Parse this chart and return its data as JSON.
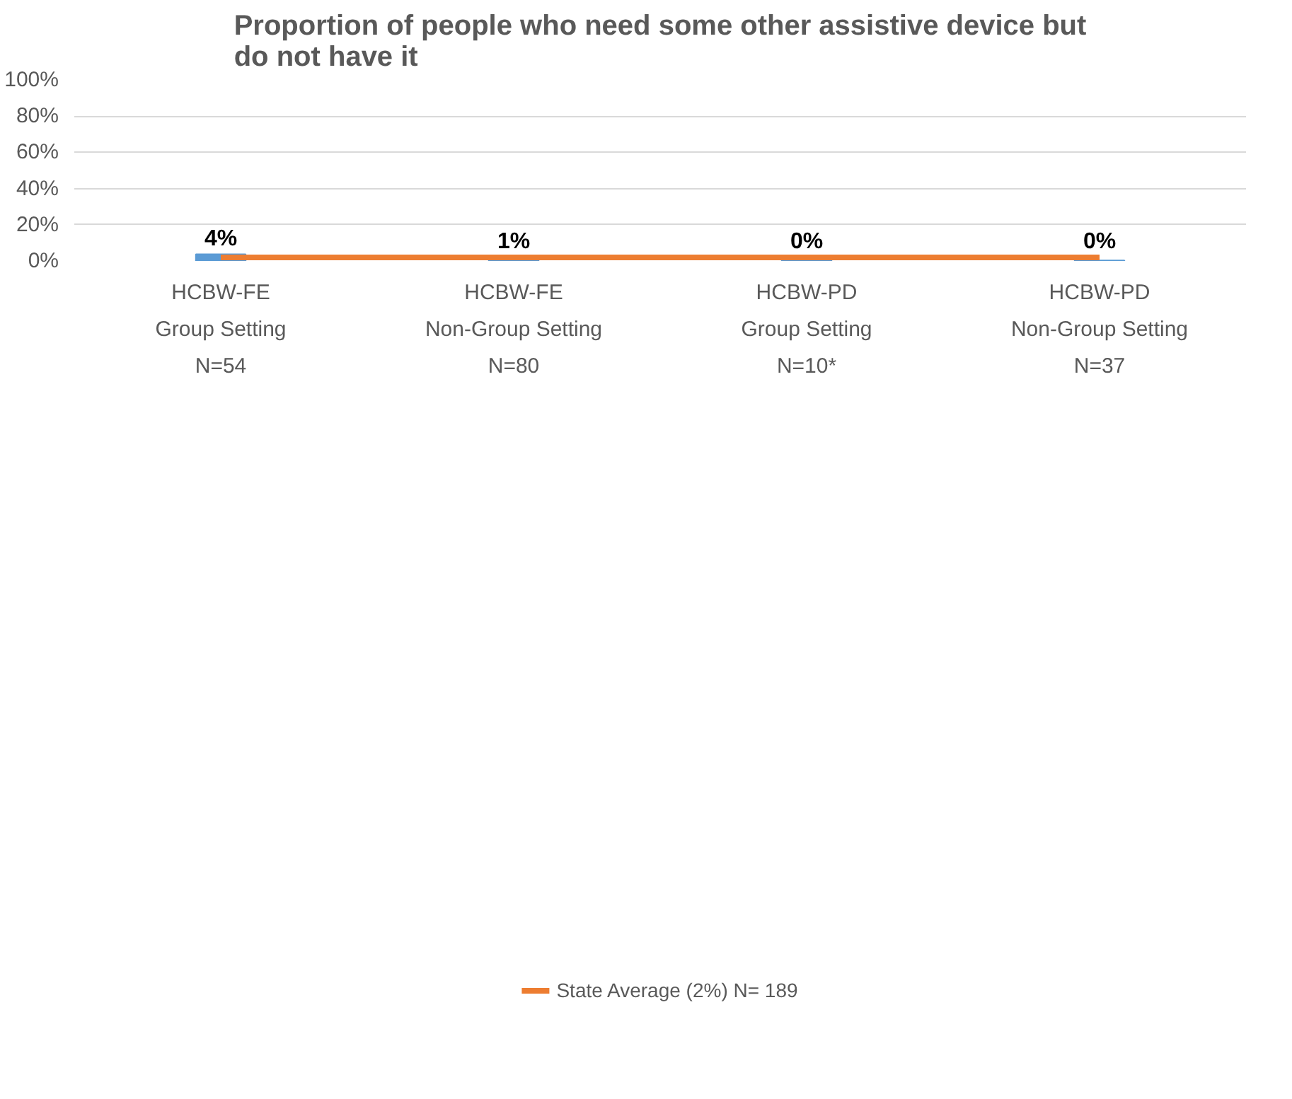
{
  "chart_data": {
    "type": "bar",
    "title": "Proportion of people who need some other assistive device but\ndo not have it",
    "categories": [
      "HCBW-FE\nGroup Setting\nN=54",
      "HCBW-FE\nNon-Group Setting\nN=80",
      "HCBW-PD\nGroup Setting\nN=10*",
      "HCBW-PD\nNon-Group Setting\nN=37"
    ],
    "series": [
      {
        "color": "#5b9bd5",
        "values": [
          3.7,
          1.2,
          0.3,
          0.3
        ],
        "value_labels": [
          "4%",
          "1%",
          "0%",
          "0%"
        ]
      },
      {
        "type": "line",
        "name": "State Average (2%) N= 189",
        "color": "#ed7d31",
        "values": [
          2,
          2,
          2,
          2
        ]
      }
    ],
    "ylim": [
      0,
      100
    ],
    "yticks": [
      {
        "value": 0,
        "label": "0%"
      },
      {
        "value": 20,
        "label": "20%"
      },
      {
        "value": 40,
        "label": "40%"
      },
      {
        "value": 60,
        "label": "60%"
      },
      {
        "value": 80,
        "label": "80%"
      },
      {
        "value": 100,
        "label": "100%"
      }
    ],
    "grid": "y",
    "legend": "bottom"
  }
}
